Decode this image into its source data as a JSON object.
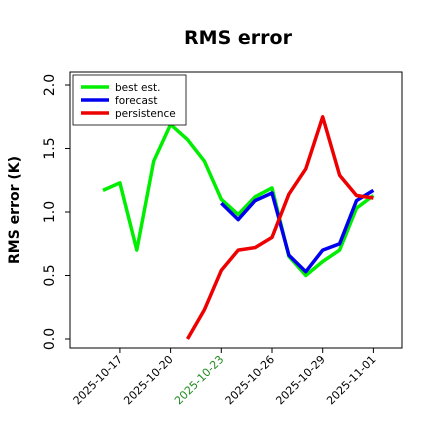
{
  "chart_data": {
    "type": "line",
    "title": "RMS error",
    "ylabel": "RMS error (K)",
    "xlabel": "",
    "ylim": [
      0.0,
      2.0
    ],
    "yticks": [
      "0.0",
      "0.5",
      "1.0",
      "1.5",
      "2.0"
    ],
    "xticks": [
      {
        "label": "2025-10-17",
        "color": "#000000"
      },
      {
        "label": "2025-10-20",
        "color": "#000000"
      },
      {
        "label": "2025-10-23",
        "color": "#228B22"
      },
      {
        "label": "2025-10-26",
        "color": "#000000"
      },
      {
        "label": "2025-10-29",
        "color": "#000000"
      },
      {
        "label": "2025-11-01",
        "color": "#000000"
      }
    ],
    "legend_position": "top-left",
    "series": [
      {
        "name": "best est.",
        "color": "#00ee00",
        "points": [
          [
            "2025-10-16",
            1.17
          ],
          [
            "2025-10-17",
            1.23
          ],
          [
            "2025-10-18",
            0.7
          ],
          [
            "2025-10-19",
            1.4
          ],
          [
            "2025-10-20",
            1.69
          ],
          [
            "2025-10-21",
            1.57
          ],
          [
            "2025-10-22",
            1.4
          ],
          [
            "2025-10-23",
            1.1
          ],
          [
            "2025-10-24",
            0.98
          ],
          [
            "2025-10-25",
            1.12
          ],
          [
            "2025-10-26",
            1.19
          ],
          [
            "2025-10-27",
            0.65
          ],
          [
            "2025-10-28",
            0.5
          ],
          [
            "2025-10-29",
            0.61
          ],
          [
            "2025-10-30",
            0.7
          ],
          [
            "2025-10-31",
            1.03
          ],
          [
            "2025-11-01",
            1.13
          ]
        ]
      },
      {
        "name": "forecast",
        "color": "#0000ee",
        "points": [
          [
            "2025-10-23",
            1.07
          ],
          [
            "2025-10-24",
            0.94
          ],
          [
            "2025-10-25",
            1.09
          ],
          [
            "2025-10-26",
            1.15
          ],
          [
            "2025-10-27",
            0.66
          ],
          [
            "2025-10-28",
            0.53
          ],
          [
            "2025-10-29",
            0.7
          ],
          [
            "2025-10-30",
            0.75
          ],
          [
            "2025-10-31",
            1.09
          ],
          [
            "2025-11-01",
            1.17
          ]
        ]
      },
      {
        "name": "persistence",
        "color": "#ee0000",
        "points": [
          [
            "2025-10-21",
            0.0
          ],
          [
            "2025-10-22",
            0.23
          ],
          [
            "2025-10-23",
            0.54
          ],
          [
            "2025-10-24",
            0.7
          ],
          [
            "2025-10-25",
            0.72
          ],
          [
            "2025-10-26",
            0.8
          ],
          [
            "2025-10-27",
            1.14
          ],
          [
            "2025-10-28",
            1.34
          ],
          [
            "2025-10-29",
            1.75
          ],
          [
            "2025-10-30",
            1.29
          ],
          [
            "2025-10-31",
            1.13
          ],
          [
            "2025-11-01",
            1.11
          ]
        ]
      }
    ]
  }
}
